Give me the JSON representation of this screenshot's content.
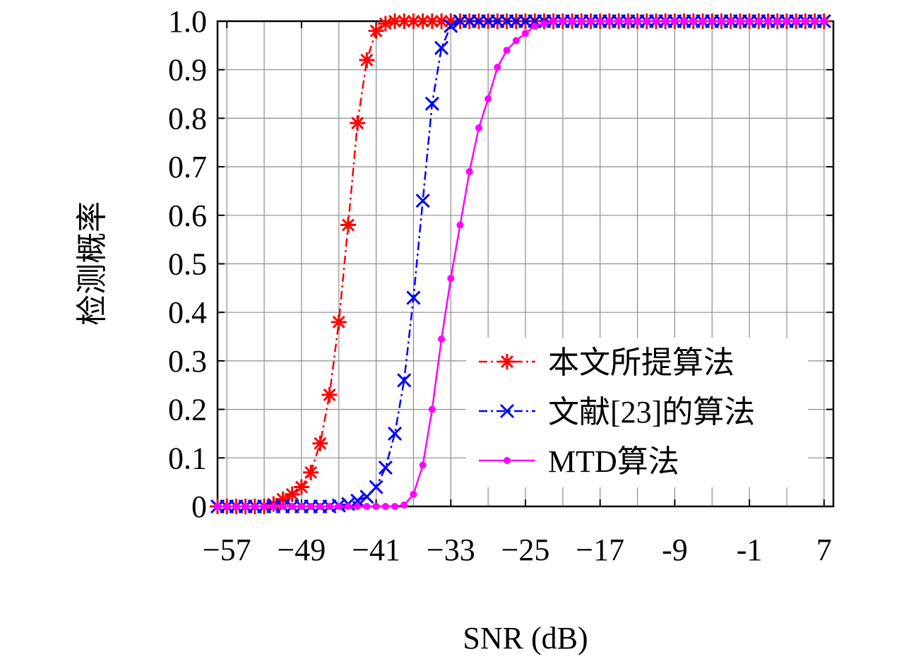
{
  "chart_data": {
    "type": "line",
    "xlabel": "SNR (dB)",
    "ylabel": "检测概率",
    "xlim": [
      -58,
      8
    ],
    "ylim": [
      0,
      1.0
    ],
    "x_ticks": [
      -57,
      -49,
      -41,
      -33,
      -25,
      -17,
      -9,
      -1,
      7
    ],
    "x_tick_labels": [
      "−57",
      "−49",
      "−41",
      "−33",
      "−25",
      "−17",
      "-9",
      "-1",
      "7"
    ],
    "y_ticks": [
      0,
      0.1,
      0.2,
      0.3,
      0.4,
      0.5,
      0.6,
      0.7,
      0.8,
      0.9,
      1.0
    ],
    "y_tick_labels": [
      "0",
      "0.1",
      "0.2",
      "0.3",
      "0.4",
      "0.5",
      "0.6",
      "0.7",
      "0.8",
      "0.9",
      "1.0"
    ],
    "grid": true,
    "legend_position": "bottom-right",
    "series": [
      {
        "name": "本文所提算法",
        "color": "#ff0000",
        "marker": "asterisk",
        "line_style": "dash-dot",
        "x": [
          -58,
          -57,
          -56,
          -55,
          -54,
          -53,
          -52,
          -51,
          -50,
          -49,
          -48,
          -47,
          -46,
          -45,
          -44,
          -43,
          -42,
          -41,
          -40,
          -39,
          -38,
          -37,
          -36,
          -35,
          -34,
          -33,
          -32,
          -31,
          -30,
          -29,
          -28,
          -27,
          -26,
          -25,
          -24,
          -23,
          -22,
          -21,
          -20,
          -19,
          -18,
          -17,
          -16,
          -15,
          -14,
          -13,
          -12,
          -11,
          -10,
          -9,
          -8,
          -7,
          -6,
          -5,
          -4,
          -3,
          -2,
          -1,
          0,
          1,
          2,
          3,
          4,
          5,
          6,
          7
        ],
        "y": [
          0,
          0,
          0,
          0,
          0,
          0,
          0.005,
          0.015,
          0.025,
          0.04,
          0.07,
          0.13,
          0.23,
          0.38,
          0.58,
          0.79,
          0.92,
          0.98,
          0.995,
          1.0,
          1.0,
          1.0,
          1.0,
          1.0,
          1.0,
          1.0,
          1.0,
          1.0,
          1.0,
          1.0,
          1.0,
          1.0,
          1.0,
          1.0,
          1.0,
          1.0,
          1.0,
          1.0,
          1.0,
          1.0,
          1.0,
          1.0,
          1.0,
          1.0,
          1.0,
          1.0,
          1.0,
          1.0,
          1.0,
          1.0,
          1.0,
          1.0,
          1.0,
          1.0,
          1.0,
          1.0,
          1.0,
          1.0,
          1.0,
          1.0,
          1.0,
          1.0,
          1.0,
          1.0,
          1.0,
          1.0
        ]
      },
      {
        "name": "文献[23]的算法",
        "color": "#0000ff",
        "marker": "x",
        "line_style": "dash-dot",
        "x": [
          -58,
          -57,
          -56,
          -55,
          -54,
          -53,
          -52,
          -51,
          -50,
          -49,
          -48,
          -47,
          -46,
          -45,
          -44,
          -43,
          -42,
          -41,
          -40,
          -39,
          -38,
          -37,
          -36,
          -35,
          -34,
          -33,
          -32,
          -31,
          -30,
          -29,
          -28,
          -27,
          -26,
          -25,
          -24,
          -23,
          -22,
          -21,
          -20,
          -19,
          -18,
          -17,
          -16,
          -15,
          -14,
          -13,
          -12,
          -11,
          -10,
          -9,
          -8,
          -7,
          -6,
          -5,
          -4,
          -3,
          -2,
          -1,
          0,
          1,
          2,
          3,
          4,
          5,
          6,
          7
        ],
        "y": [
          0,
          0,
          0,
          0,
          0,
          0,
          0,
          0,
          0,
          0,
          0,
          0,
          0,
          0.002,
          0.005,
          0.012,
          0.02,
          0.04,
          0.08,
          0.15,
          0.26,
          0.43,
          0.63,
          0.83,
          0.945,
          0.99,
          1.0,
          1.0,
          1.0,
          1.0,
          1.0,
          1.0,
          1.0,
          1.0,
          1.0,
          1.0,
          1.0,
          1.0,
          1.0,
          1.0,
          1.0,
          1.0,
          1.0,
          1.0,
          1.0,
          1.0,
          1.0,
          1.0,
          1.0,
          1.0,
          1.0,
          1.0,
          1.0,
          1.0,
          1.0,
          1.0,
          1.0,
          1.0,
          1.0,
          1.0,
          1.0,
          1.0,
          1.0,
          1.0,
          1.0,
          1.0
        ]
      },
      {
        "name": "MTD算法",
        "color": "#ff00ff",
        "marker": "dot",
        "line_style": "solid",
        "x": [
          -58,
          -57,
          -56,
          -55,
          -54,
          -53,
          -52,
          -51,
          -50,
          -49,
          -48,
          -47,
          -46,
          -45,
          -44,
          -43,
          -42,
          -41,
          -40,
          -39,
          -38,
          -37,
          -36,
          -35,
          -34,
          -33,
          -32,
          -31,
          -30,
          -29,
          -28,
          -27,
          -26,
          -25,
          -24,
          -23,
          -22,
          -21,
          -20,
          -19,
          -18,
          -17,
          -16,
          -15,
          -14,
          -13,
          -12,
          -11,
          -10,
          -9,
          -8,
          -7,
          -6,
          -5,
          -4,
          -3,
          -2,
          -1,
          0,
          1,
          2,
          3,
          4,
          5,
          6,
          7
        ],
        "y": [
          0,
          0,
          0,
          0,
          0,
          0,
          0,
          0,
          0,
          0,
          0,
          0,
          0,
          0,
          0,
          0,
          0,
          0,
          0,
          0,
          0.003,
          0.025,
          0.085,
          0.2,
          0.345,
          0.47,
          0.58,
          0.69,
          0.78,
          0.84,
          0.905,
          0.94,
          0.96,
          0.975,
          0.99,
          0.995,
          1.0,
          1.0,
          1.0,
          1.0,
          1.0,
          1.0,
          1.0,
          1.0,
          1.0,
          1.0,
          1.0,
          1.0,
          1.0,
          1.0,
          1.0,
          1.0,
          1.0,
          1.0,
          1.0,
          1.0,
          1.0,
          1.0,
          1.0,
          1.0,
          1.0,
          1.0,
          1.0,
          1.0,
          1.0,
          1.0
        ]
      }
    ]
  }
}
